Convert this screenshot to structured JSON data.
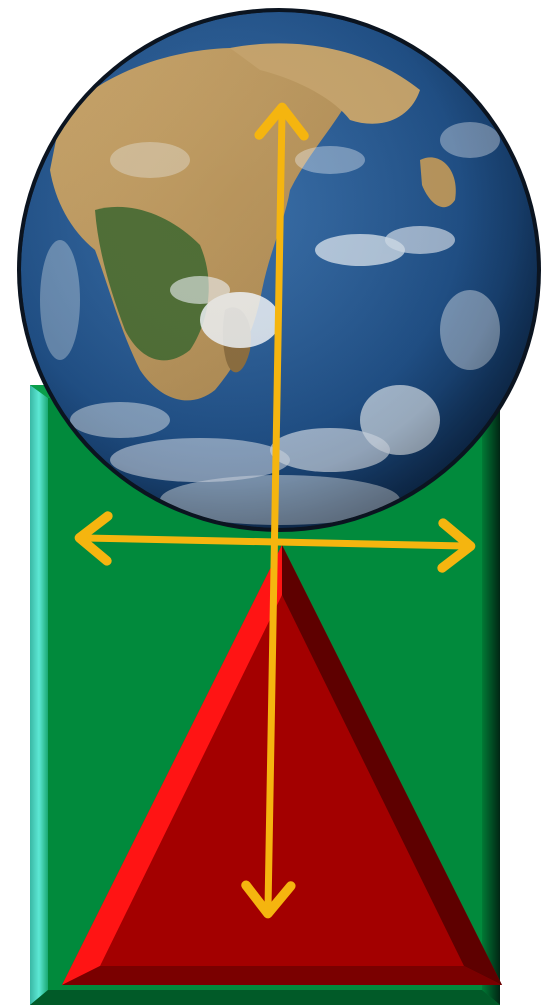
{
  "diagram": {
    "description_free": true,
    "colors": {
      "background": "#ffffff",
      "block_face": "#018a3c",
      "block_edge_light": "#4fd6c4",
      "block_edge_dark": "#013318",
      "triangle_face": "#a30000",
      "triangle_highlight": "#ff1414",
      "triangle_shadow": "#5e0000",
      "arrow": "#f5b50f",
      "ocean": "#1f4f86",
      "land": "#b9975e",
      "vegetation": "#4e6d35",
      "cloud": "#eef2f6",
      "globe_outline": "#0b1420"
    },
    "icons": {
      "globe": "earth-globe",
      "block": "green-bevel-block",
      "wedge": "red-pyramid",
      "arrows": "double-headed-arrows"
    }
  }
}
